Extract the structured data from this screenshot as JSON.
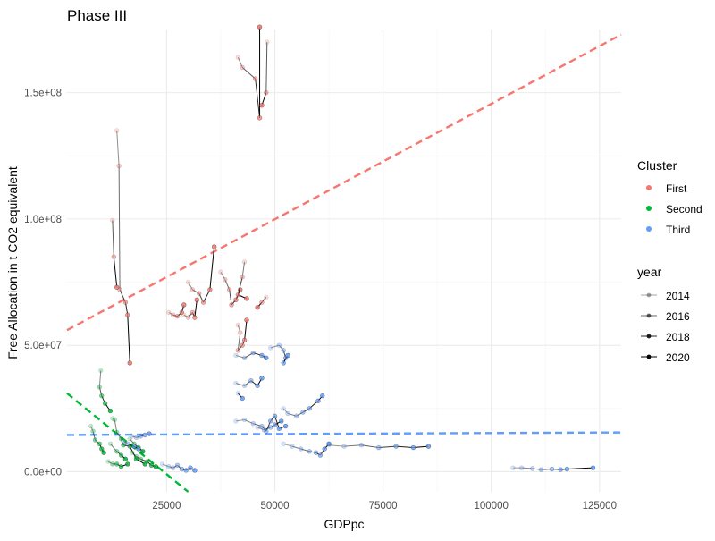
{
  "chart_data": {
    "type": "scatter",
    "title": "Phase III",
    "xlabel": "GDPpc",
    "ylabel": "Free Allocation in t CO2 equivalent",
    "xlim": [
      2000,
      130000
    ],
    "ylim": [
      -8000000,
      175000000
    ],
    "x_ticks": [
      25000,
      50000,
      75000,
      100000,
      125000
    ],
    "x_tick_labels": [
      "25000",
      "50000",
      "75000",
      "100000",
      "125000"
    ],
    "y_ticks": [
      0,
      50000000,
      100000000,
      150000000
    ],
    "y_tick_labels": [
      "0.0e+00",
      "5.0e+07",
      "1.0e+08",
      "1.5e+08"
    ],
    "grid": true,
    "legend_placement": "right",
    "colors": {
      "First": "#F8766D",
      "Second": "#00BA38",
      "Third": "#619CFF"
    },
    "legend": {
      "cluster_title": "Cluster",
      "cluster_items": [
        "First",
        "Second",
        "Third"
      ],
      "year_title": "year",
      "year_items": [
        "2014",
        "2016",
        "2018",
        "2020"
      ]
    },
    "trend_lines": [
      {
        "cluster": "First",
        "x": [
          2000,
          130000
        ],
        "y": [
          56000000,
          173000000
        ]
      },
      {
        "cluster": "Second",
        "x": [
          2000,
          30000
        ],
        "y": [
          31000000,
          -8000000
        ]
      },
      {
        "cluster": "Third",
        "x": [
          2000,
          130000
        ],
        "y": [
          14500000,
          15500000
        ]
      }
    ],
    "series": [
      {
        "cluster": "First",
        "points": [
          [
            41500,
            164000000
          ],
          [
            42500,
            160000000
          ],
          [
            45500,
            155500000
          ],
          [
            46500,
            140000000
          ],
          [
            46500,
            176000000
          ]
        ]
      },
      {
        "cluster": "First",
        "points": [
          [
            48200,
            170000000
          ],
          [
            48000,
            150000000
          ],
          [
            47000,
            145000000
          ]
        ]
      },
      {
        "cluster": "First",
        "points": [
          [
            13500,
            135000000
          ],
          [
            14000,
            121000000
          ],
          [
            14200,
            72000000
          ],
          [
            15500,
            67000000
          ],
          [
            16000,
            62000000
          ],
          [
            16500,
            43000000
          ]
        ]
      },
      {
        "cluster": "First",
        "points": [
          [
            12500,
            99500000
          ],
          [
            12800,
            85000000
          ],
          [
            13500,
            73000000
          ]
        ]
      },
      {
        "cluster": "First",
        "points": [
          [
            25500,
            63000000
          ],
          [
            26500,
            62000000
          ],
          [
            27500,
            61500000
          ],
          [
            28500,
            63000000
          ],
          [
            29000,
            66000000
          ]
        ]
      },
      {
        "cluster": "First",
        "points": [
          [
            29000,
            62000000
          ],
          [
            30000,
            61000000
          ],
          [
            31000,
            63000000
          ],
          [
            31500,
            61000000
          ],
          [
            32000,
            68000000
          ]
        ]
      },
      {
        "cluster": "First",
        "points": [
          [
            30000,
            75000000
          ],
          [
            31000,
            72000000
          ],
          [
            32500,
            70500000
          ],
          [
            33500,
            67000000
          ],
          [
            35000,
            72000000
          ],
          [
            36000,
            89000000
          ]
        ]
      },
      {
        "cluster": "First",
        "points": [
          [
            37500,
            79000000
          ],
          [
            38500,
            76000000
          ],
          [
            39500,
            72000000
          ],
          [
            40000,
            66000000
          ],
          [
            41000,
            68000000
          ],
          [
            42000,
            72000000
          ]
        ]
      },
      {
        "cluster": "First",
        "points": [
          [
            43000,
            83000000
          ],
          [
            42500,
            77000000
          ],
          [
            41500,
            70000000
          ],
          [
            43500,
            68500000
          ]
        ]
      },
      {
        "cluster": "First",
        "points": [
          [
            48000,
            69000000
          ],
          [
            47000,
            67000000
          ],
          [
            46000,
            65000000
          ]
        ]
      },
      {
        "cluster": "First",
        "points": [
          [
            41500,
            58000000
          ],
          [
            42000,
            55000000
          ],
          [
            41500,
            48000000
          ],
          [
            42500,
            50000000
          ],
          [
            43000,
            52000000
          ],
          [
            43500,
            60000000
          ]
        ]
      },
      {
        "cluster": "Second",
        "points": [
          [
            9800,
            40000000
          ],
          [
            9500,
            33500000
          ],
          [
            10000,
            30000000
          ],
          [
            10800,
            27000000
          ],
          [
            12000,
            24000000
          ]
        ]
      },
      {
        "cluster": "Second",
        "points": [
          [
            12500,
            21000000
          ],
          [
            13000,
            20500000
          ],
          [
            13500,
            15500000
          ],
          [
            14500,
            13000000
          ],
          [
            15000,
            10500000
          ],
          [
            16500,
            10000000
          ],
          [
            18000,
            5000000
          ],
          [
            20000,
            3000000
          ]
        ]
      },
      {
        "cluster": "Second",
        "points": [
          [
            7500,
            18000000
          ],
          [
            8000,
            16000000
          ],
          [
            8500,
            12500000
          ],
          [
            9500,
            11000000
          ],
          [
            10000,
            9000000
          ],
          [
            10500,
            7500000
          ]
        ]
      },
      {
        "cluster": "Second",
        "points": [
          [
            12000,
            11000000
          ],
          [
            13500,
            8000000
          ],
          [
            14500,
            6500000
          ],
          [
            15500,
            5000000
          ]
        ]
      },
      {
        "cluster": "Second",
        "points": [
          [
            11500,
            4000000
          ],
          [
            12500,
            3000000
          ],
          [
            13500,
            3000000
          ],
          [
            14500,
            2000000
          ],
          [
            16000,
            3000000
          ]
        ]
      },
      {
        "cluster": "Second",
        "points": [
          [
            17000,
            7500000
          ],
          [
            18000,
            6000000
          ],
          [
            19000,
            5000000
          ],
          [
            20500,
            4000000
          ],
          [
            21500,
            2500000
          ],
          [
            22500,
            2000000
          ]
        ]
      },
      {
        "cluster": "Second",
        "points": [
          [
            16500,
            13000000
          ],
          [
            17500,
            11000000
          ],
          [
            18500,
            9500000
          ],
          [
            19500,
            8000000
          ]
        ]
      },
      {
        "cluster": "Third",
        "points": [
          [
            41000,
            46000000
          ],
          [
            43000,
            45000000
          ],
          [
            45000,
            47000000
          ],
          [
            47000,
            46000000
          ],
          [
            48000,
            45000000
          ]
        ]
      },
      {
        "cluster": "Third",
        "points": [
          [
            49000,
            49000000
          ],
          [
            51000,
            50000000
          ],
          [
            52000,
            48000000
          ],
          [
            52500,
            45000000
          ],
          [
            52000,
            43000000
          ],
          [
            53000,
            46000000
          ]
        ]
      },
      {
        "cluster": "Third",
        "points": [
          [
            41000,
            35000000
          ],
          [
            43000,
            34000000
          ],
          [
            44500,
            36000000
          ],
          [
            46000,
            34000000
          ],
          [
            47000,
            37000000
          ]
        ]
      },
      {
        "cluster": "Third",
        "points": [
          [
            41500,
            31000000
          ],
          [
            42500,
            29000000
          ]
        ]
      },
      {
        "cluster": "Third",
        "points": [
          [
            52000,
            25000000
          ],
          [
            53000,
            23000000
          ],
          [
            55000,
            22000000
          ],
          [
            56500,
            23500000
          ],
          [
            58000,
            25000000
          ],
          [
            60000,
            28000000
          ],
          [
            61000,
            30000000
          ]
        ]
      },
      {
        "cluster": "Third",
        "points": [
          [
            41000,
            20000000
          ],
          [
            43000,
            20500000
          ],
          [
            45000,
            19000000
          ],
          [
            47000,
            18000000
          ],
          [
            48000,
            16000000
          ],
          [
            49000,
            20000000
          ],
          [
            50000,
            22000000
          ],
          [
            51000,
            17000000
          ],
          [
            52500,
            18000000
          ]
        ]
      },
      {
        "cluster": "Third",
        "points": [
          [
            46000,
            17500000
          ],
          [
            47500,
            16500000
          ],
          [
            49000,
            17500000
          ],
          [
            50000,
            18500000
          ],
          [
            51500,
            20000000
          ]
        ]
      },
      {
        "cluster": "Third",
        "points": [
          [
            17000,
            14000000
          ],
          [
            18000,
            13500000
          ],
          [
            19000,
            14000000
          ],
          [
            20000,
            14500000
          ],
          [
            21000,
            15000000
          ]
        ]
      },
      {
        "cluster": "Third",
        "points": [
          [
            15000,
            12000000
          ],
          [
            16000,
            11000000
          ],
          [
            17500,
            10000000
          ],
          [
            18500,
            9000000
          ]
        ]
      },
      {
        "cluster": "Third",
        "points": [
          [
            24000,
            3000000
          ],
          [
            25500,
            2000000
          ],
          [
            26500,
            1500000
          ],
          [
            27500,
            2500000
          ],
          [
            28500,
            1000000
          ],
          [
            29500,
            500000
          ],
          [
            30500,
            1500000
          ],
          [
            31500,
            500000
          ]
        ]
      },
      {
        "cluster": "Third",
        "points": [
          [
            52000,
            11000000
          ],
          [
            54000,
            10000000
          ],
          [
            56000,
            9000000
          ],
          [
            58000,
            8000000
          ],
          [
            59500,
            7500000
          ],
          [
            60500,
            6500000
          ],
          [
            61500,
            9000000
          ],
          [
            62500,
            11000000
          ]
        ]
      },
      {
        "cluster": "Third",
        "points": [
          [
            62500,
            10500000
          ],
          [
            66000,
            10000000
          ],
          [
            70000,
            10500000
          ],
          [
            74000,
            9500000
          ],
          [
            78000,
            10000000
          ],
          [
            82000,
            9500000
          ],
          [
            85500,
            10000000
          ]
        ]
      },
      {
        "cluster": "Third",
        "points": [
          [
            105000,
            1500000
          ],
          [
            107000,
            1500000
          ],
          [
            109500,
            1200000
          ],
          [
            111500,
            800000
          ],
          [
            114000,
            1000000
          ],
          [
            116000,
            800000
          ],
          [
            117500,
            1000000
          ],
          [
            123500,
            1500000
          ]
        ]
      }
    ]
  }
}
